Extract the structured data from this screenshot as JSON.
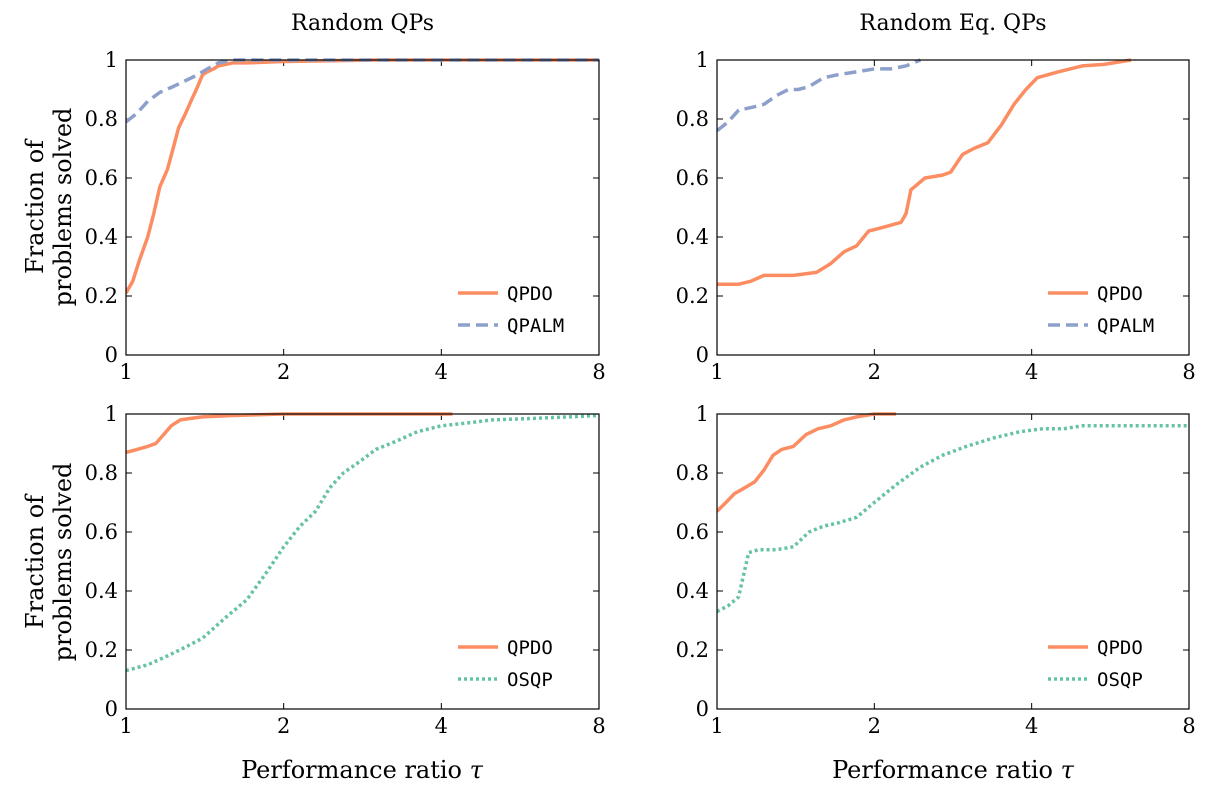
{
  "figure": {
    "shared_xlabel_prefix": "Performance ratio ",
    "shared_xlabel_symbol": "τ",
    "shared_ylabel_line1": "Fraction of",
    "shared_ylabel_line2": "problems solved"
  },
  "colors": {
    "QPDO": "#fc8d62",
    "QPALM": "#8da0cb",
    "OSQP": "#66c2a5",
    "axis": "#000000"
  },
  "chart_data": [
    {
      "type": "line",
      "title": "Random QPs",
      "xscale": "log2",
      "xlim": [
        1,
        8
      ],
      "ylim": [
        0,
        1
      ],
      "xticks": [
        "1",
        "2",
        "4",
        "8"
      ],
      "yticks": [
        "0",
        "0.2",
        "0.4",
        "0.6",
        "0.8",
        "1"
      ],
      "legend_position": "bottom-right",
      "series": [
        {
          "name": "QPDO",
          "style": "solid",
          "color": "#fc8d62",
          "x": [
            1,
            1.03,
            1.06,
            1.1,
            1.13,
            1.16,
            1.2,
            1.23,
            1.26,
            1.3,
            1.33,
            1.37,
            1.4,
            1.43,
            1.47,
            1.5,
            1.55,
            1.6,
            1.7,
            2.0,
            3.0,
            8.0
          ],
          "y": [
            0.21,
            0.25,
            0.32,
            0.4,
            0.48,
            0.57,
            0.63,
            0.7,
            0.77,
            0.82,
            0.86,
            0.91,
            0.95,
            0.96,
            0.97,
            0.98,
            0.985,
            0.99,
            0.99,
            0.995,
            1.0,
            1.0
          ]
        },
        {
          "name": "QPALM",
          "style": "dashed",
          "color": "#8da0cb",
          "x": [
            1,
            1.05,
            1.1,
            1.16,
            1.23,
            1.3,
            1.37,
            1.43,
            1.5,
            1.6,
            8.0
          ],
          "y": [
            0.79,
            0.82,
            0.86,
            0.89,
            0.91,
            0.93,
            0.95,
            0.97,
            0.99,
            1.0,
            1.0
          ]
        }
      ]
    },
    {
      "type": "line",
      "title": "Random Eq. QPs",
      "xscale": "log2",
      "xlim": [
        1,
        8
      ],
      "ylim": [
        0,
        1
      ],
      "xticks": [
        "1",
        "2",
        "4",
        "8"
      ],
      "yticks": [
        "0",
        "0.2",
        "0.4",
        "0.6",
        "0.8",
        "1"
      ],
      "legend_position": "bottom-right",
      "series": [
        {
          "name": "QPDO",
          "style": "solid",
          "color": "#fc8d62",
          "x": [
            1,
            1.1,
            1.16,
            1.23,
            1.4,
            1.55,
            1.65,
            1.75,
            1.85,
            1.95,
            2.05,
            2.15,
            2.25,
            2.3,
            2.35,
            2.5,
            2.7,
            2.8,
            2.95,
            3.1,
            3.3,
            3.5,
            3.7,
            3.9,
            4.1,
            4.5,
            5.0,
            5.5,
            6.2
          ],
          "y": [
            0.24,
            0.24,
            0.25,
            0.27,
            0.27,
            0.28,
            0.31,
            0.35,
            0.37,
            0.42,
            0.43,
            0.44,
            0.45,
            0.48,
            0.56,
            0.6,
            0.61,
            0.62,
            0.68,
            0.7,
            0.72,
            0.78,
            0.85,
            0.9,
            0.94,
            0.96,
            0.98,
            0.985,
            1.0
          ]
        },
        {
          "name": "QPALM",
          "style": "dashed",
          "color": "#8da0cb",
          "x": [
            1,
            1.05,
            1.1,
            1.17,
            1.23,
            1.3,
            1.37,
            1.43,
            1.5,
            1.6,
            1.7,
            1.85,
            2.0,
            2.15,
            2.3,
            2.45
          ],
          "y": [
            0.76,
            0.79,
            0.83,
            0.84,
            0.85,
            0.88,
            0.9,
            0.9,
            0.91,
            0.94,
            0.95,
            0.96,
            0.97,
            0.97,
            0.98,
            1.0
          ]
        }
      ]
    },
    {
      "type": "line",
      "title": "",
      "xscale": "log2",
      "xlim": [
        1,
        8
      ],
      "ylim": [
        0,
        1
      ],
      "xticks": [
        "1",
        "2",
        "4",
        "8"
      ],
      "yticks": [
        "0",
        "0.2",
        "0.4",
        "0.6",
        "0.8",
        "1"
      ],
      "legend_position": "bottom-right",
      "series": [
        {
          "name": "QPDO",
          "style": "solid",
          "color": "#fc8d62",
          "x": [
            1,
            1.05,
            1.1,
            1.14,
            1.18,
            1.22,
            1.27,
            1.33,
            1.4,
            1.6,
            2.0,
            3.0,
            4.2
          ],
          "y": [
            0.87,
            0.88,
            0.89,
            0.9,
            0.93,
            0.96,
            0.98,
            0.985,
            0.99,
            0.995,
            1.0,
            1.0,
            1.0
          ]
        },
        {
          "name": "OSQP",
          "style": "dotted",
          "color": "#66c2a5",
          "x": [
            1,
            1.1,
            1.2,
            1.3,
            1.4,
            1.55,
            1.7,
            1.85,
            2.0,
            2.15,
            2.3,
            2.45,
            2.6,
            2.8,
            3.0,
            3.3,
            3.6,
            4.0,
            4.5,
            5.0,
            6.0,
            7.0,
            8.0
          ],
          "y": [
            0.13,
            0.15,
            0.18,
            0.21,
            0.24,
            0.31,
            0.37,
            0.46,
            0.55,
            0.62,
            0.67,
            0.75,
            0.8,
            0.84,
            0.88,
            0.91,
            0.94,
            0.96,
            0.97,
            0.98,
            0.985,
            0.99,
            0.995
          ]
        }
      ]
    },
    {
      "type": "line",
      "title": "",
      "xscale": "log2",
      "xlim": [
        1,
        8
      ],
      "ylim": [
        0,
        1
      ],
      "xticks": [
        "1",
        "2",
        "4",
        "8"
      ],
      "yticks": [
        "0",
        "0.2",
        "0.4",
        "0.6",
        "0.8",
        "1"
      ],
      "legend_position": "bottom-right",
      "series": [
        {
          "name": "QPDO",
          "style": "solid",
          "color": "#fc8d62",
          "x": [
            1,
            1.04,
            1.08,
            1.13,
            1.18,
            1.23,
            1.28,
            1.33,
            1.4,
            1.48,
            1.56,
            1.65,
            1.75,
            1.85,
            2.0,
            2.2
          ],
          "y": [
            0.67,
            0.7,
            0.73,
            0.75,
            0.77,
            0.81,
            0.86,
            0.88,
            0.89,
            0.93,
            0.95,
            0.96,
            0.98,
            0.99,
            1.0,
            1.0
          ]
        },
        {
          "name": "OSQP",
          "style": "dotted",
          "color": "#66c2a5",
          "x": [
            1,
            1.05,
            1.1,
            1.15,
            1.2,
            1.3,
            1.4,
            1.5,
            1.6,
            1.7,
            1.85,
            2.0,
            2.2,
            2.45,
            2.7,
            3.0,
            3.4,
            3.8,
            4.2,
            4.6,
            5.0,
            6.0,
            7.0,
            8.0
          ],
          "y": [
            0.33,
            0.35,
            0.38,
            0.53,
            0.54,
            0.54,
            0.55,
            0.6,
            0.62,
            0.63,
            0.65,
            0.7,
            0.76,
            0.82,
            0.86,
            0.89,
            0.92,
            0.94,
            0.95,
            0.95,
            0.96,
            0.96,
            0.96,
            0.96
          ]
        }
      ]
    }
  ]
}
